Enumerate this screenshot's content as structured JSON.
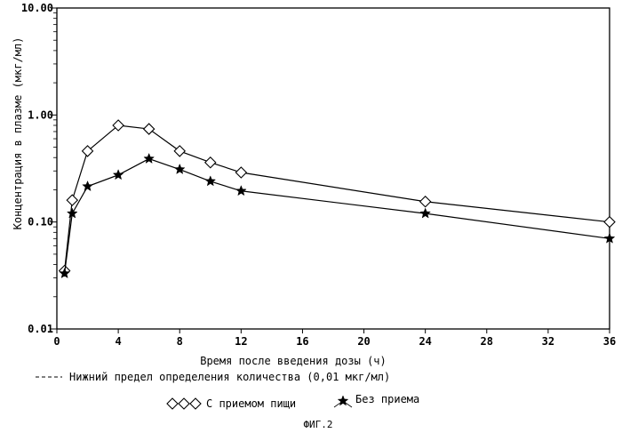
{
  "chart_data": {
    "type": "line",
    "y_scale": "log",
    "xlabel": "Время после введения дозы (ч)",
    "ylabel": "Концентрация в плазме (мкг/мл)",
    "xlim": [
      0,
      36
    ],
    "ylim": [
      0.01,
      10
    ],
    "x_ticks": [
      0,
      4,
      8,
      12,
      16,
      20,
      24,
      28,
      32,
      36
    ],
    "x_tick_labels": [
      "0",
      "4",
      "8",
      "12",
      "16",
      "20",
      "24",
      "28",
      "32",
      "36"
    ],
    "y_ticks": [
      0.01,
      0.1,
      1,
      10
    ],
    "y_tick_labels": [
      "0.01",
      "0.10",
      "1.00",
      "10.00"
    ],
    "series": [
      {
        "name": "С приемом пищи",
        "marker": "diamond",
        "x": [
          0.5,
          1,
          2,
          4,
          6,
          8,
          10,
          12,
          24,
          36
        ],
        "y": [
          0.035,
          0.16,
          0.46,
          0.8,
          0.74,
          0.46,
          0.36,
          0.29,
          0.155,
          0.1
        ]
      },
      {
        "name": "Без приема",
        "marker": "star",
        "x": [
          0.5,
          1,
          2,
          4,
          6,
          8,
          10,
          12,
          24,
          36
        ],
        "y": [
          0.033,
          0.12,
          0.215,
          0.275,
          0.39,
          0.31,
          0.24,
          0.195,
          0.12,
          0.07
        ]
      }
    ],
    "reference_line": {
      "y": 0.01,
      "style": "dashed",
      "label": "Нижний предел определения количества (0,01 мкг/мл)"
    },
    "legend_position": "bottom",
    "caption": "ФИГ.2"
  }
}
